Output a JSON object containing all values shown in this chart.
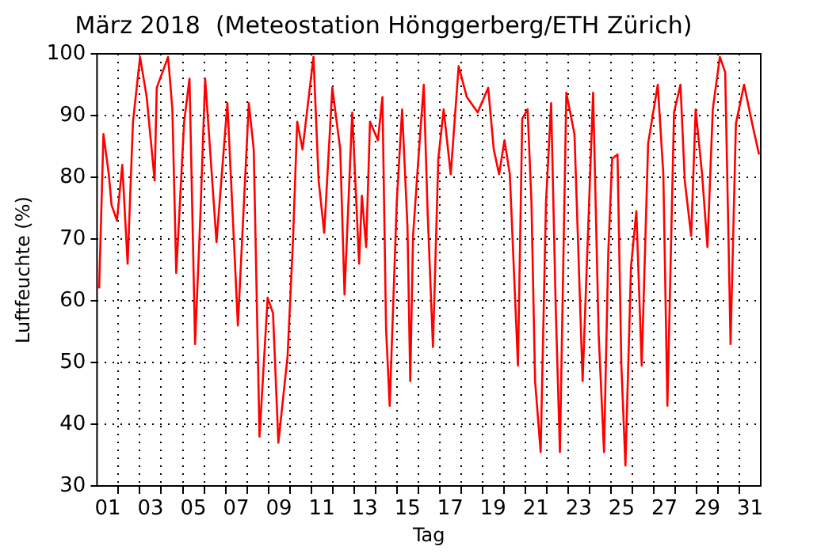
{
  "chart_data": {
    "type": "line",
    "title": "März 2018  (Meteostation Hönggerberg/ETH Zürich)",
    "xlabel": "Tag",
    "ylabel": "Luftfeuchte (%)",
    "x": [
      1.1,
      1.3,
      1.55,
      1.68,
      1.93,
      2.18,
      2.43,
      2.68,
      3.01,
      3.32,
      3.69,
      3.79,
      4.32,
      4.52,
      4.7,
      5.07,
      5.32,
      5.58,
      5.83,
      6.05,
      6.58,
      7.09,
      7.58,
      8.09,
      8.32,
      8.59,
      8.97,
      9.22,
      9.47,
      9.9,
      10.15,
      10.35,
      10.6,
      11.11,
      11.35,
      11.61,
      11.99,
      12.36,
      12.56,
      12.92,
      13.24,
      13.37,
      13.57,
      13.75,
      14.12,
      14.33,
      14.5,
      14.67,
      15.0,
      15.25,
      15.5,
      15.63,
      15.76,
      16.01,
      16.26,
      16.44,
      16.69,
      16.94,
      17.19,
      17.52,
      17.89,
      18.27,
      18.78,
      19.27,
      19.53,
      19.78,
      20.03,
      20.28,
      20.66,
      20.86,
      21.11,
      21.29,
      21.46,
      21.72,
      21.97,
      22.21,
      22.42,
      22.62,
      22.92,
      23.3,
      23.68,
      24.17,
      24.43,
      24.68,
      24.88,
      25.06,
      25.31,
      25.49,
      25.68,
      25.94,
      26.19,
      26.44,
      26.74,
      27.19,
      27.45,
      27.64,
      27.95,
      28.25,
      28.45,
      28.75,
      28.96,
      29.26,
      29.51,
      29.76,
      30.09,
      30.34,
      30.59,
      30.84,
      31.22,
      31.6,
      31.92
    ],
    "series": [
      {
        "color": "#ff0000",
        "values": [
          62,
          87,
          80.5,
          75.5,
          73,
          82,
          66,
          89,
          99.5,
          93,
          79.5,
          94.5,
          99.5,
          91,
          64.5,
          89,
          96,
          53,
          74,
          96,
          69.5,
          92,
          56,
          92,
          84.5,
          38,
          60.5,
          58,
          37,
          51,
          69.5,
          89,
          84.5,
          99.5,
          79.5,
          71,
          94.5,
          84.5,
          61,
          90.5,
          66,
          77,
          68.7,
          89,
          86,
          93,
          55.5,
          43,
          76,
          91,
          72,
          47,
          70.5,
          83,
          95,
          74.5,
          52.5,
          83,
          91,
          80.5,
          98,
          93,
          90.5,
          94.5,
          84.5,
          80.5,
          86,
          80.5,
          49.5,
          89.5,
          91,
          76,
          47,
          35.5,
          76,
          92,
          59.5,
          35.5,
          93.7,
          87,
          47,
          93.7,
          54.5,
          35.5,
          68,
          83,
          83.7,
          49.5,
          33.3,
          65.5,
          74.5,
          49.5,
          85.5,
          95,
          80.5,
          43,
          90.5,
          95,
          79.5,
          70.5,
          91,
          80.5,
          68.7,
          91,
          99.5,
          97,
          53,
          88.7,
          95,
          88.7,
          83.7
        ]
      }
    ],
    "xlim": [
      1,
      32
    ],
    "ylim": [
      30,
      100
    ],
    "xticks": [
      {
        "value": 1.5,
        "label": "01"
      },
      {
        "value": 2,
        "label": null
      },
      {
        "value": 3,
        "label": null
      },
      {
        "value": 3.5,
        "label": "03"
      },
      {
        "value": 4,
        "label": null
      },
      {
        "value": 5,
        "label": null
      },
      {
        "value": 5.5,
        "label": "05"
      },
      {
        "value": 6,
        "label": null
      },
      {
        "value": 7,
        "label": null
      },
      {
        "value": 7.5,
        "label": "07"
      },
      {
        "value": 8,
        "label": null
      },
      {
        "value": 9,
        "label": null
      },
      {
        "value": 9.5,
        "label": "09"
      },
      {
        "value": 10,
        "label": null
      },
      {
        "value": 11,
        "label": null
      },
      {
        "value": 11.5,
        "label": "11"
      },
      {
        "value": 12,
        "label": null
      },
      {
        "value": 13,
        "label": null
      },
      {
        "value": 13.5,
        "label": "13"
      },
      {
        "value": 14,
        "label": null
      },
      {
        "value": 15,
        "label": null
      },
      {
        "value": 15.5,
        "label": "15"
      },
      {
        "value": 16,
        "label": null
      },
      {
        "value": 17,
        "label": null
      },
      {
        "value": 17.5,
        "label": "17"
      },
      {
        "value": 18,
        "label": null
      },
      {
        "value": 19,
        "label": null
      },
      {
        "value": 19.5,
        "label": "19"
      },
      {
        "value": 20,
        "label": null
      },
      {
        "value": 21,
        "label": null
      },
      {
        "value": 21.5,
        "label": "21"
      },
      {
        "value": 22,
        "label": null
      },
      {
        "value": 23,
        "label": null
      },
      {
        "value": 23.5,
        "label": "23"
      },
      {
        "value": 24,
        "label": null
      },
      {
        "value": 25,
        "label": null
      },
      {
        "value": 25.5,
        "label": "25"
      },
      {
        "value": 26,
        "label": null
      },
      {
        "value": 27,
        "label": null
      },
      {
        "value": 27.5,
        "label": "27"
      },
      {
        "value": 28,
        "label": null
      },
      {
        "value": 29,
        "label": null
      },
      {
        "value": 29.5,
        "label": "29"
      },
      {
        "value": 30,
        "label": null
      },
      {
        "value": 31,
        "label": null
      },
      {
        "value": 31.5,
        "label": "31"
      }
    ],
    "yticks": [
      30,
      40,
      50,
      60,
      70,
      80,
      90,
      100
    ],
    "grid": true,
    "marker": "none"
  }
}
